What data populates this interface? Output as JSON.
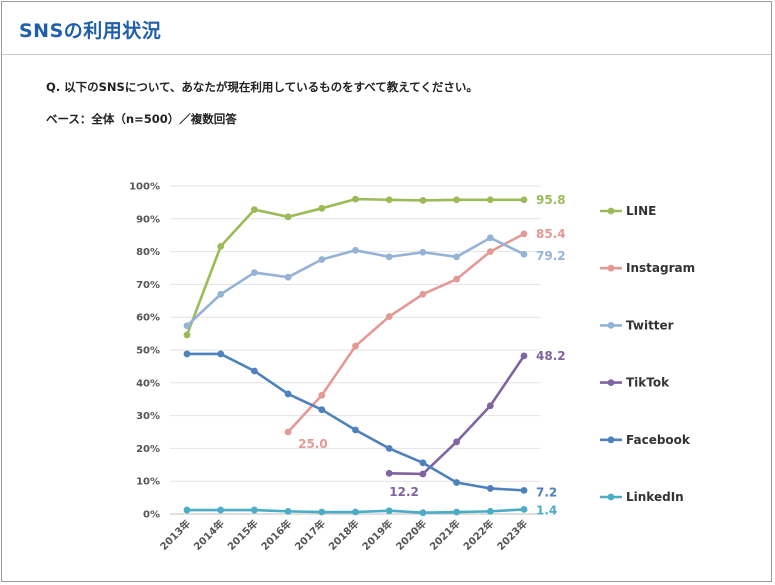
{
  "header": {
    "title": "SNSの利用状況"
  },
  "question": "Q. 以下のSNSについて、あなたが現在利用しているものをすべて教えてください。",
  "base": "ベース：全体（n=500）／複数回答",
  "chart_data": {
    "type": "line",
    "categories": [
      "2013年",
      "2014年",
      "2015年",
      "2016年",
      "2017年",
      "2018年",
      "2019年",
      "2020年",
      "2021年",
      "2022年",
      "2023年"
    ],
    "y_ticks": [
      "0%",
      "10%",
      "20%",
      "30%",
      "40%",
      "50%",
      "60%",
      "70%",
      "80%",
      "90%",
      "100%"
    ],
    "ylim": [
      0,
      100
    ],
    "grid": true,
    "legend_position": "right",
    "series": [
      {
        "name": "LINE",
        "color": "#9bbb59",
        "values": [
          54.6,
          81.6,
          92.8,
          90.6,
          93.2,
          96.0,
          95.8,
          95.6,
          95.8,
          95.8,
          95.8
        ],
        "labels": [
          {
            "index": 10,
            "text": "95.8"
          }
        ]
      },
      {
        "name": "Instagram",
        "color": "#e39a95",
        "values": [
          null,
          null,
          null,
          25.0,
          36.2,
          51.2,
          60.2,
          67.0,
          71.6,
          80.0,
          85.4
        ],
        "labels": [
          {
            "index": 3,
            "text": "25.0"
          },
          {
            "index": 10,
            "text": "85.4"
          }
        ]
      },
      {
        "name": "Twitter",
        "color": "#95b3d7",
        "values": [
          57.4,
          67.0,
          73.6,
          72.2,
          77.6,
          80.4,
          78.4,
          79.8,
          78.4,
          84.2,
          79.2
        ],
        "labels": [
          {
            "index": 10,
            "text": "79.2"
          }
        ]
      },
      {
        "name": "TikTok",
        "color": "#8064a2",
        "values": [
          null,
          null,
          null,
          null,
          null,
          null,
          12.4,
          12.2,
          22.0,
          33.0,
          48.2
        ],
        "labels": [
          {
            "index": 7,
            "text": "12.2"
          },
          {
            "index": 10,
            "text": "48.2"
          }
        ]
      },
      {
        "name": "Facebook",
        "color": "#4f81bd",
        "values": [
          48.8,
          48.8,
          43.6,
          36.6,
          31.8,
          25.6,
          20.0,
          15.6,
          9.6,
          7.8,
          7.2
        ],
        "labels": [
          {
            "index": 10,
            "text": "7.2"
          }
        ]
      },
      {
        "name": "LinkedIn",
        "color": "#4bacc6",
        "values": [
          1.2,
          1.2,
          1.2,
          0.8,
          0.6,
          0.6,
          1.0,
          0.4,
          0.6,
          0.8,
          1.4
        ],
        "labels": [
          {
            "index": 10,
            "text": "1.4"
          }
        ]
      }
    ]
  }
}
